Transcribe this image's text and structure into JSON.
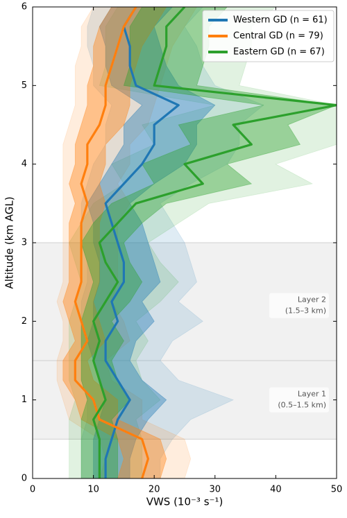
{
  "chart_data": {
    "type": "line",
    "orientation": "horizontal",
    "x_label": "VWS (10⁻³ s⁻¹)",
    "y_label": "Altitude (km AGL)",
    "xlim": [
      0,
      50
    ],
    "xticks": [
      0,
      10,
      20,
      30,
      40,
      50
    ],
    "ylim": [
      0,
      6
    ],
    "yticks": [
      0,
      1,
      2,
      3,
      4,
      5,
      6
    ],
    "grid": false,
    "legend": "upper right",
    "altitude": [
      0,
      0.25,
      0.5,
      0.75,
      1,
      1.25,
      1.5,
      1.75,
      2,
      2.25,
      2.5,
      2.75,
      3,
      3.25,
      3.5,
      3.75,
      4,
      4.25,
      4.5,
      4.75,
      5,
      5.25,
      5.5,
      5.75,
      6
    ],
    "layers": [
      {
        "label": [
          "Layer 1",
          "(0.5–1.5 km)"
        ],
        "range": [
          0.5,
          1.5
        ]
      },
      {
        "label": [
          "Layer 2",
          "(1.5–3 km)"
        ],
        "range": [
          1.5,
          3
        ]
      }
    ],
    "series": [
      {
        "name": "Western GD (n = 61)",
        "color": "#1f77b4",
        "values": [
          12,
          12,
          13,
          14,
          16,
          14,
          12,
          12,
          14,
          13,
          15,
          15,
          14,
          13,
          12,
          15,
          18,
          20,
          20,
          24,
          17,
          16,
          16,
          15,
          17
        ],
        "lower": [
          10,
          10,
          10,
          11,
          12,
          11,
          10,
          9,
          10,
          10,
          11,
          11,
          10,
          10,
          9,
          11,
          13,
          15,
          15,
          18,
          13,
          12,
          12,
          11,
          13
        ],
        "upper": [
          16,
          16,
          17,
          19,
          22,
          18,
          16,
          17,
          20,
          18,
          21,
          20,
          19,
          18,
          16,
          20,
          25,
          27,
          27,
          30,
          24,
          22,
          21,
          20,
          23
        ],
        "outer_lower": [
          8,
          8,
          8,
          9,
          9,
          8,
          8,
          8,
          8,
          8,
          9,
          9,
          8,
          8,
          8,
          9,
          10,
          12,
          12,
          13,
          10,
          10,
          9,
          9,
          10
        ],
        "outer_upper": [
          21,
          21,
          23,
          26,
          33,
          24,
          21,
          23,
          28,
          24,
          27,
          26,
          25,
          23,
          21,
          26,
          32,
          34,
          34,
          38,
          30,
          28,
          27,
          25,
          28
        ]
      },
      {
        "name": "Central GD (n = 79)",
        "color": "#ff7f0e",
        "values": [
          18,
          19,
          18,
          11,
          10,
          7,
          7,
          9,
          8,
          7,
          8,
          8,
          8,
          8,
          9,
          8,
          9,
          9,
          11,
          12,
          12,
          13,
          14,
          15,
          17
        ],
        "lower": [
          14,
          15,
          14,
          8,
          7,
          5,
          5,
          7,
          6,
          5,
          6,
          6,
          6,
          6,
          7,
          6,
          7,
          7,
          8,
          9,
          9,
          10,
          10,
          11,
          13
        ],
        "upper": [
          21,
          22,
          21,
          14,
          14,
          10,
          9,
          12,
          11,
          10,
          11,
          11,
          11,
          11,
          12,
          11,
          12,
          12,
          15,
          16,
          16,
          17,
          18,
          20,
          22
        ],
        "outer_lower": [
          11,
          12,
          11,
          6,
          5,
          4,
          4,
          5,
          5,
          4,
          5,
          5,
          5,
          5,
          5,
          5,
          5,
          5,
          6,
          7,
          7,
          7,
          8,
          8,
          10
        ],
        "outer_upper": [
          25,
          26,
          25,
          18,
          18,
          13,
          12,
          16,
          15,
          13,
          14,
          14,
          14,
          14,
          16,
          14,
          16,
          16,
          19,
          20,
          21,
          22,
          23,
          25,
          27
        ]
      },
      {
        "name": "Eastern GD (n = 67)",
        "color": "#2ca02c",
        "values": [
          11,
          11,
          11,
          10,
          12,
          11,
          10,
          11,
          10,
          12,
          14,
          12,
          11,
          14,
          17,
          28,
          25,
          36,
          33,
          50,
          20,
          21,
          22,
          22,
          25
        ],
        "lower": [
          8,
          8,
          8,
          8,
          9,
          8,
          8,
          8,
          8,
          9,
          10,
          9,
          8,
          10,
          13,
          20,
          18,
          26,
          24,
          38,
          15,
          16,
          16,
          16,
          18
        ],
        "upper": [
          14,
          14,
          14,
          13,
          16,
          14,
          13,
          15,
          13,
          16,
          18,
          16,
          15,
          18,
          22,
          36,
          32,
          44,
          42,
          50,
          27,
          28,
          29,
          29,
          32
        ],
        "outer_lower": [
          6,
          6,
          6,
          6,
          7,
          6,
          6,
          6,
          6,
          7,
          8,
          7,
          6,
          8,
          10,
          15,
          13,
          20,
          18,
          30,
          11,
          12,
          12,
          12,
          14
        ],
        "outer_upper": [
          18,
          18,
          18,
          17,
          21,
          18,
          17,
          19,
          17,
          21,
          24,
          21,
          19,
          24,
          29,
          46,
          40,
          50,
          50,
          50,
          34,
          35,
          36,
          36,
          40
        ]
      }
    ]
  }
}
